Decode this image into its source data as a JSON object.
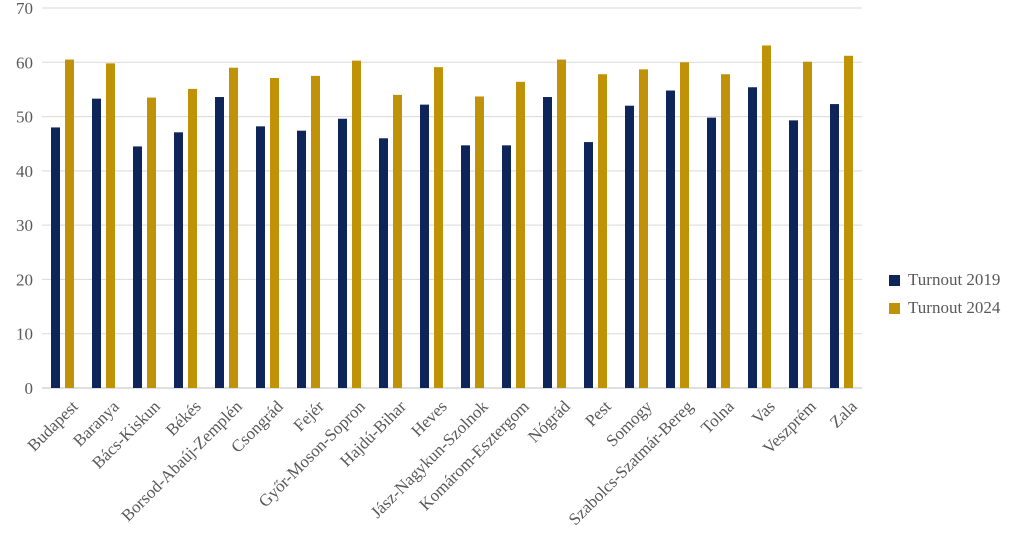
{
  "chart_data": {
    "type": "bar",
    "categories": [
      "Budapest",
      "Baranya",
      "Bács-Kiskun",
      "Békés",
      "Borsod-Abaúj-Zemplén",
      "Csongrád",
      "Fejér",
      "Győr-Moson-Sopron",
      "Hajdú-Bihar",
      "Heves",
      "Jász-Nagykun-Szolnok",
      "Komárom-Esztergom",
      "Nógrád",
      "Pest",
      "Somogy",
      "Szabolcs-Szatmár-Bereg",
      "Tolna",
      "Vas",
      "Veszprém",
      "Zala"
    ],
    "series": [
      {
        "name": "Turnout 2019",
        "color": "#0d2559",
        "values": [
          48.0,
          53.3,
          44.5,
          47.1,
          53.6,
          48.2,
          47.4,
          49.6,
          46.0,
          52.2,
          44.7,
          44.7,
          53.6,
          45.3,
          52.0,
          54.8,
          49.8,
          55.4,
          49.3,
          52.3
        ]
      },
      {
        "name": "Turnout 2024",
        "color": "#c09207",
        "values": [
          60.5,
          59.8,
          53.5,
          55.1,
          59.0,
          57.1,
          57.5,
          60.3,
          54.0,
          59.1,
          53.7,
          56.4,
          60.5,
          57.8,
          58.7,
          60.0,
          57.8,
          63.1,
          60.1,
          61.2
        ]
      }
    ],
    "yticks": [
      "0",
      "10",
      "20",
      "30",
      "40",
      "50",
      "60",
      "70"
    ],
    "ylim": [
      0,
      70
    ],
    "grid": true,
    "legend_position": "right"
  }
}
